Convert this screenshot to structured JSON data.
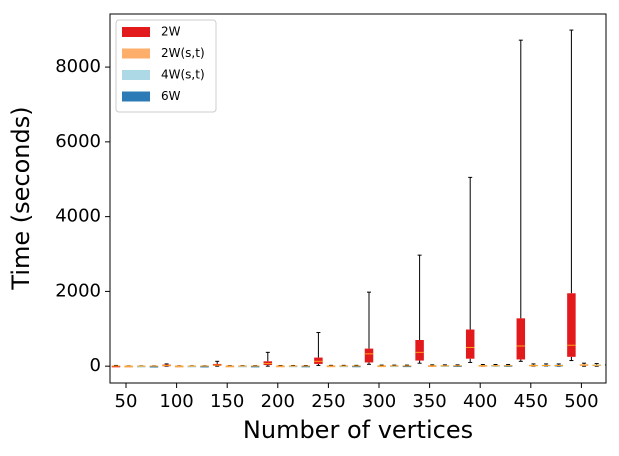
{
  "chart_data": {
    "type": "boxplot",
    "x_label": "Number of vertices",
    "y_label": "Time (seconds)",
    "categories": [
      "50",
      "100",
      "150",
      "200",
      "250",
      "300",
      "350",
      "400",
      "450",
      "500"
    ],
    "ylim": [
      -450,
      9420
    ],
    "yticks": [
      0,
      2000,
      4000,
      6000,
      8000
    ],
    "legend": "upper left",
    "series": [
      {
        "name": "2W",
        "color": "#e31a1c",
        "values": [
          [
            0,
            0,
            5,
            10,
            20
          ],
          [
            0,
            10,
            20,
            40,
            60
          ],
          [
            0,
            10,
            30,
            60,
            130
          ],
          [
            0,
            30,
            70,
            130,
            370
          ],
          [
            20,
            60,
            130,
            230,
            900
          ],
          [
            50,
            100,
            330,
            470,
            1980
          ],
          [
            80,
            150,
            370,
            700,
            2970
          ],
          [
            100,
            200,
            500,
            980,
            5050
          ],
          [
            130,
            180,
            540,
            1280,
            8720
          ],
          [
            150,
            250,
            560,
            1950,
            8990
          ]
        ]
      },
      {
        "name": "2W(s,t)",
        "color": "#fdae6b",
        "values": [
          [
            0,
            1,
            2,
            4,
            8
          ],
          [
            0,
            1,
            3,
            6,
            10
          ],
          [
            0,
            2,
            4,
            8,
            14
          ],
          [
            0,
            2,
            5,
            10,
            18
          ],
          [
            0,
            3,
            6,
            12,
            22
          ],
          [
            0,
            4,
            8,
            15,
            28
          ],
          [
            0,
            5,
            10,
            20,
            35
          ],
          [
            0,
            6,
            12,
            25,
            45
          ],
          [
            0,
            8,
            18,
            35,
            60
          ],
          [
            0,
            10,
            30,
            50,
            80
          ]
        ]
      },
      {
        "name": "4W(s,t)",
        "color": "#add8e6",
        "values": [
          [
            0,
            1,
            2,
            4,
            8
          ],
          [
            0,
            1,
            3,
            6,
            10
          ],
          [
            0,
            2,
            4,
            8,
            14
          ],
          [
            0,
            2,
            5,
            10,
            18
          ],
          [
            0,
            3,
            6,
            12,
            22
          ],
          [
            0,
            4,
            8,
            15,
            28
          ],
          [
            0,
            5,
            10,
            20,
            35
          ],
          [
            0,
            6,
            12,
            25,
            45
          ],
          [
            0,
            8,
            18,
            35,
            60
          ],
          [
            0,
            10,
            25,
            45,
            70
          ]
        ]
      },
      {
        "name": "6W",
        "color": "#2c7bb6",
        "values": [
          [
            0,
            1,
            2,
            4,
            8
          ],
          [
            0,
            1,
            3,
            6,
            10
          ],
          [
            0,
            2,
            4,
            8,
            14
          ],
          [
            0,
            2,
            5,
            10,
            18
          ],
          [
            0,
            3,
            6,
            12,
            22
          ],
          [
            0,
            4,
            8,
            15,
            28
          ],
          [
            0,
            5,
            10,
            20,
            35
          ],
          [
            0,
            6,
            12,
            25,
            45
          ],
          [
            0,
            8,
            18,
            35,
            60
          ],
          [
            0,
            5,
            20,
            60,
            90
          ]
        ]
      }
    ]
  }
}
